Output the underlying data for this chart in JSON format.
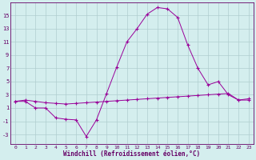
{
  "x": [
    0,
    1,
    2,
    3,
    4,
    5,
    6,
    7,
    8,
    9,
    10,
    11,
    12,
    13,
    14,
    15,
    16,
    17,
    18,
    19,
    20,
    21,
    22,
    23
  ],
  "line1_y": [
    2,
    2,
    1,
    1,
    -0.5,
    -0.7,
    -0.8,
    -3.3,
    -0.8,
    3.2,
    7.2,
    11,
    13,
    15.2,
    16.2,
    16,
    14.7,
    10.5,
    7,
    4.5,
    5.0,
    3,
    2.2,
    2.4
  ],
  "line2_y": [
    2,
    2.2,
    2.0,
    1.8,
    1.7,
    1.6,
    1.7,
    1.8,
    1.9,
    2.0,
    2.1,
    2.2,
    2.3,
    2.4,
    2.5,
    2.6,
    2.7,
    2.8,
    2.9,
    3.0,
    3.1,
    3.2,
    2.2,
    2.2
  ],
  "line_color": "#990099",
  "bg_color": "#d4eeee",
  "grid_color": "#b0cecf",
  "xlabel": "Windchill (Refroidissement éolien,°C)",
  "yticks": [
    -3,
    -1,
    1,
    3,
    5,
    7,
    9,
    11,
    13,
    15
  ],
  "ylim": [
    -4.5,
    17
  ],
  "xlim": [
    -0.5,
    23.5
  ],
  "marker": "+"
}
